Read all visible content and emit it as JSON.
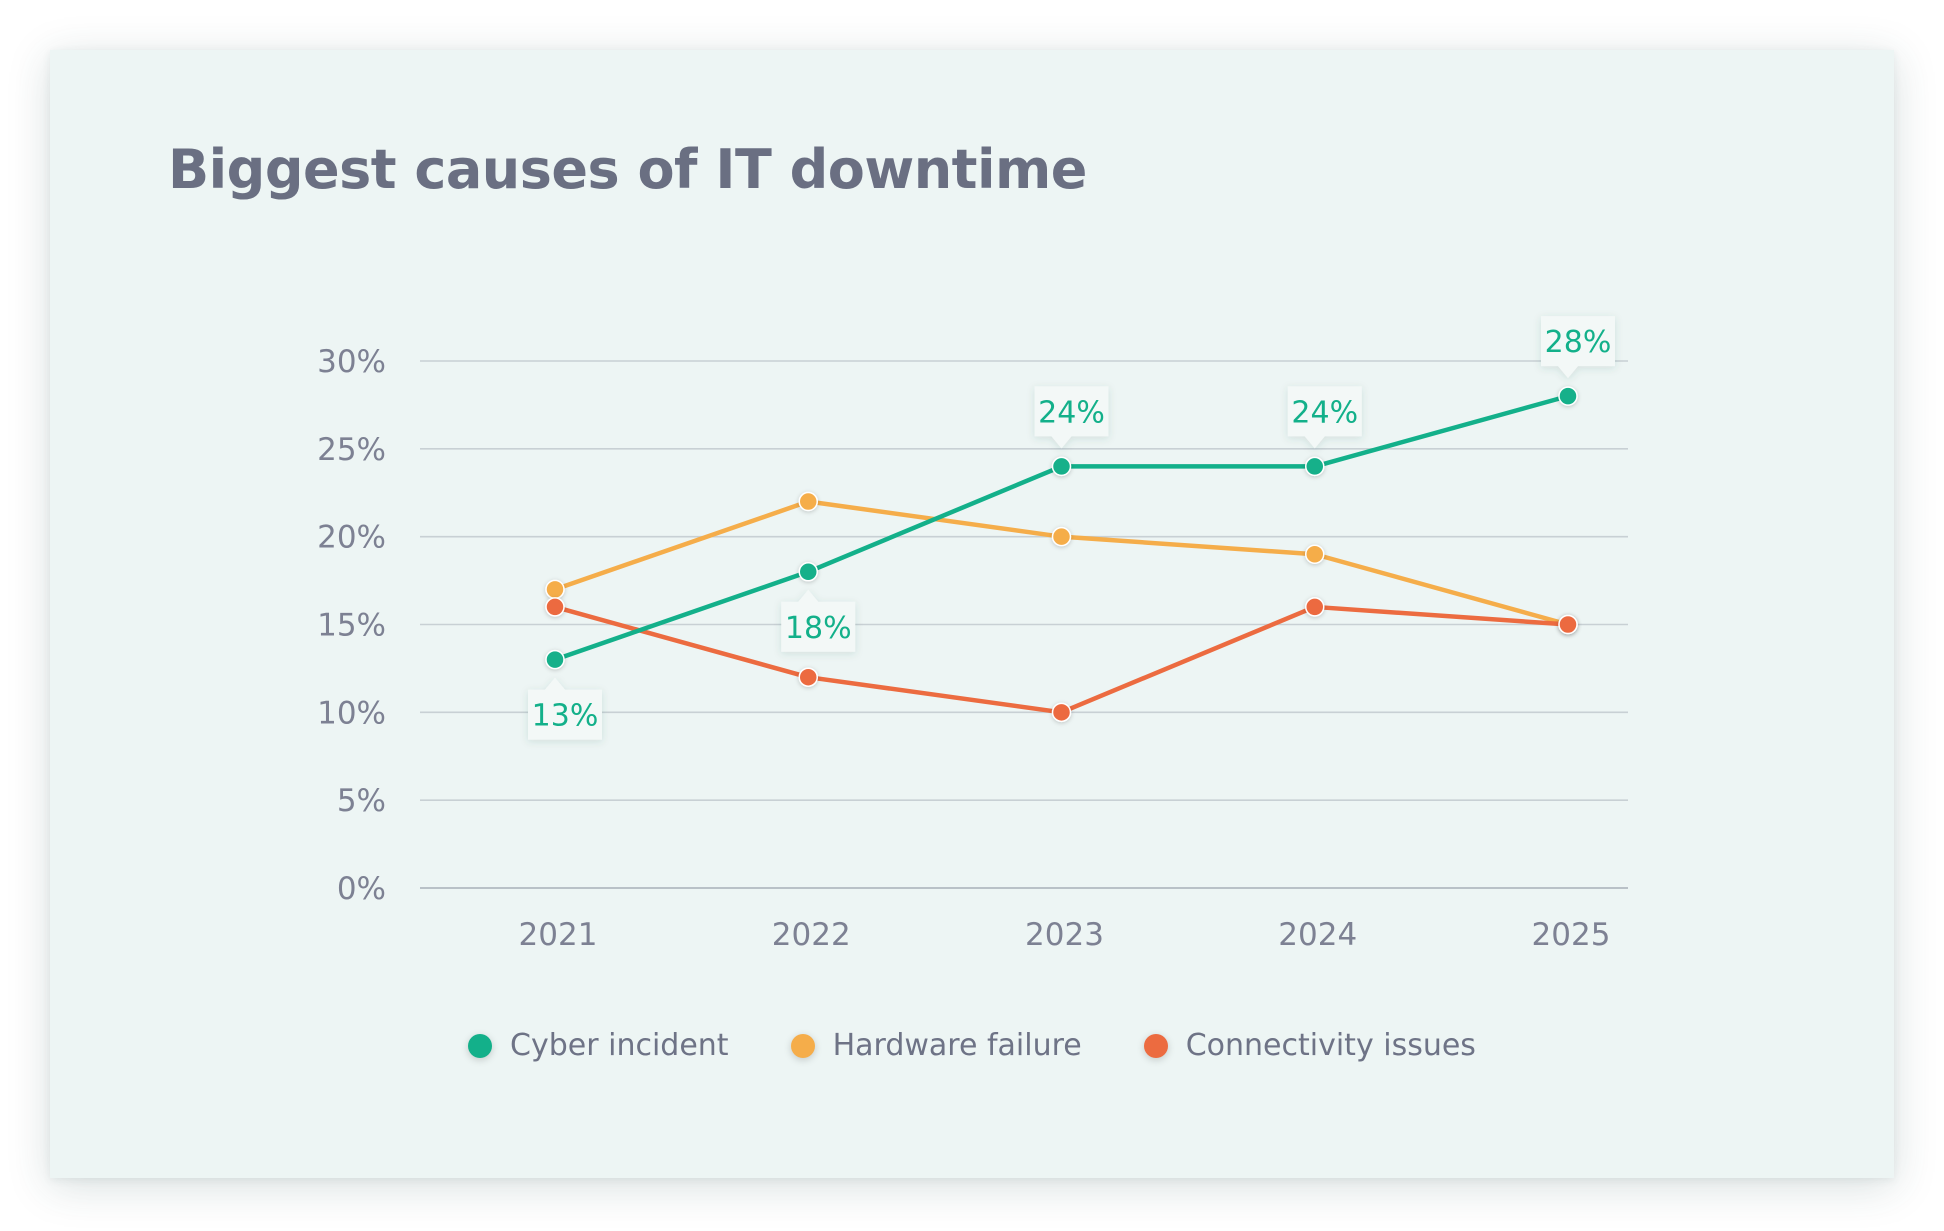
{
  "chart_data": {
    "type": "line",
    "title": "Biggest causes of IT downtime",
    "xlabel": "",
    "ylabel": "",
    "categories": [
      "2021",
      "2022",
      "2023",
      "2024",
      "2025"
    ],
    "ylim": [
      0,
      30
    ],
    "yticks": [
      0,
      5,
      10,
      15,
      20,
      25,
      30
    ],
    "ytick_labels": [
      "0%",
      "5%",
      "10%",
      "15%",
      "20%",
      "25%",
      "30%"
    ],
    "grid": true,
    "legend_position": "bottom",
    "series": [
      {
        "name": "Cyber incident",
        "color": "#13b08a",
        "values": [
          13,
          18,
          24,
          24,
          28
        ],
        "data_labels": [
          "13%",
          "18%",
          "24%",
          "24%",
          "28%"
        ],
        "label_positions": [
          "below",
          "below",
          "above",
          "above",
          "above"
        ]
      },
      {
        "name": "Hardware failure",
        "color": "#f5ad4a",
        "values": [
          17,
          22,
          20,
          19,
          15
        ]
      },
      {
        "name": "Connectivity issues",
        "color": "#ec6b40",
        "values": [
          16,
          12,
          10,
          16,
          15
        ]
      }
    ]
  }
}
